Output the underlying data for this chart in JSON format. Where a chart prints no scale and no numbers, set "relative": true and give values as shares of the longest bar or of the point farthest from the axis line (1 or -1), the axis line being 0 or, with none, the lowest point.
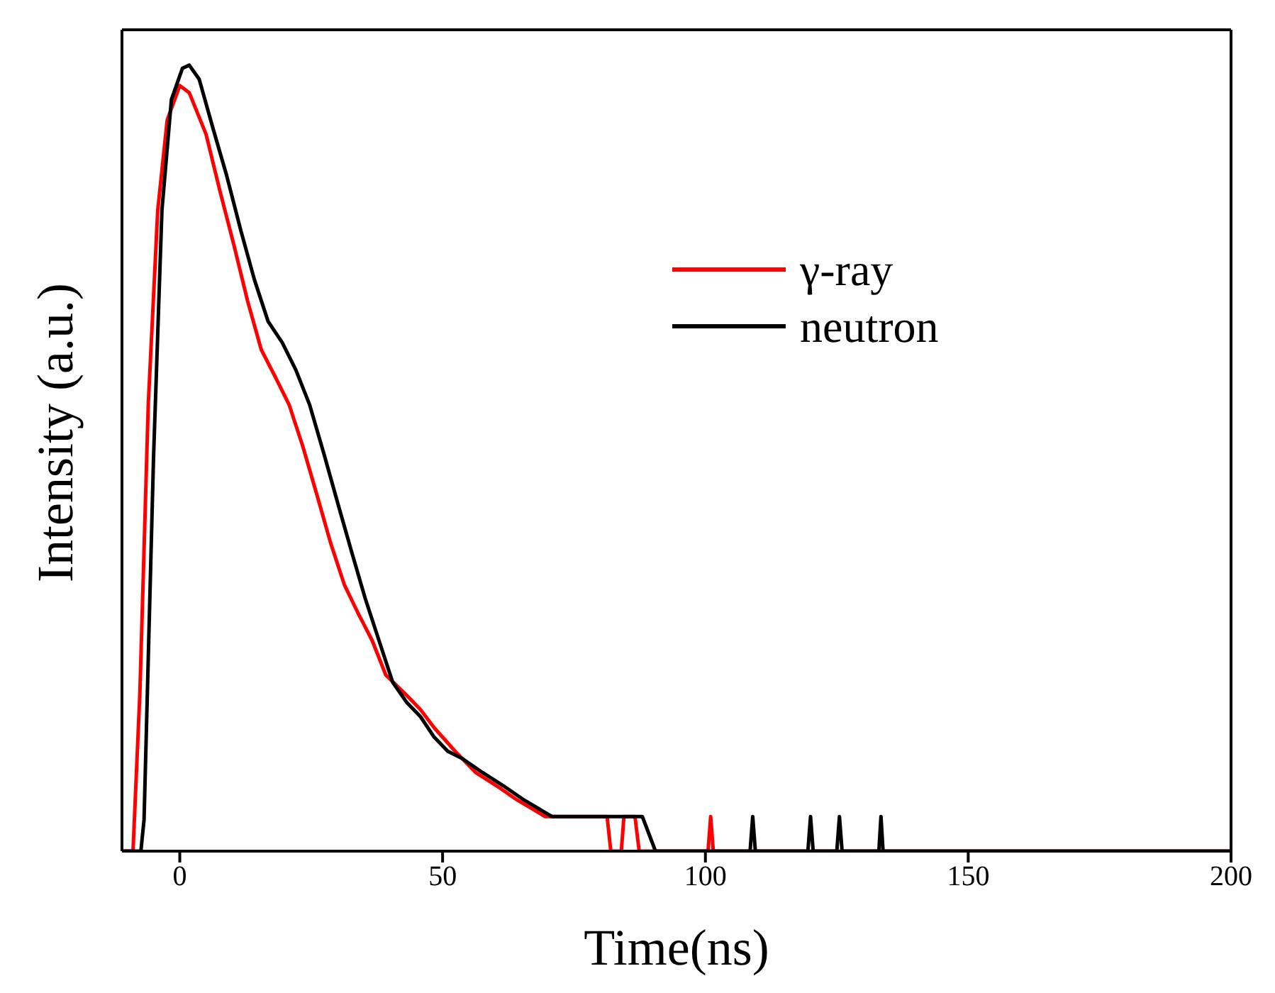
{
  "chart_data": {
    "type": "line",
    "xlabel": "Time(ns)",
    "ylabel": "Intensity (a.u.)",
    "relative": true,
    "xlim": [
      -11,
      200
    ],
    "xticks": [
      0,
      50,
      100,
      150,
      200
    ],
    "legend": "top right",
    "series": [
      {
        "name": "γ-ray",
        "color": "#ff0000",
        "x": [
          -11,
          -8.9,
          -7.6,
          -6,
          -4.2,
          -2.4,
          0,
          1.8,
          5,
          7.6,
          10.3,
          12.9,
          15.5,
          18.2,
          20.8,
          23.4,
          26.1,
          28.7,
          31.3,
          33.9,
          36.6,
          39.2,
          43.2,
          45.8,
          48.4,
          52.4,
          56.3,
          60.3,
          64.2,
          69.5,
          81.3,
          82,
          84,
          84.5,
          86.6,
          87.4,
          100.5,
          101,
          101.5,
          200
        ],
        "values": [
          0,
          0,
          0.2,
          0.568,
          0.815,
          0.93,
          0.974,
          0.965,
          0.912,
          0.841,
          0.771,
          0.7,
          0.638,
          0.603,
          0.568,
          0.515,
          0.453,
          0.392,
          0.339,
          0.303,
          0.268,
          0.224,
          0.198,
          0.18,
          0.157,
          0.127,
          0.1,
          0.083,
          0.065,
          0.044,
          0.044,
          0,
          0,
          0.044,
          0.044,
          0,
          0,
          0.044,
          0,
          0
        ]
      },
      {
        "name": "neutron",
        "color": "#000000",
        "x": [
          -11,
          -7.4,
          -6.8,
          -5,
          -3.4,
          -1.6,
          0.5,
          1.8,
          3.7,
          6.3,
          8.9,
          11.6,
          14.2,
          16.8,
          19.5,
          22.1,
          24.7,
          27.4,
          30,
          32.6,
          35.3,
          37.9,
          40.5,
          43.2,
          45.8,
          48.4,
          51,
          53.7,
          57.6,
          61.6,
          65.5,
          70.8,
          88,
          90.5,
          108.5,
          109,
          109.5,
          119.5,
          120,
          120.5,
          125,
          125.5,
          126,
          133,
          133.4,
          133.8,
          200
        ],
        "values": [
          0,
          0,
          0.04,
          0.5,
          0.815,
          0.956,
          0.996,
          1,
          0.982,
          0.92,
          0.86,
          0.79,
          0.727,
          0.674,
          0.647,
          0.612,
          0.568,
          0.506,
          0.444,
          0.383,
          0.321,
          0.268,
          0.215,
          0.189,
          0.171,
          0.145,
          0.127,
          0.118,
          0.1,
          0.083,
          0.065,
          0.044,
          0.044,
          0,
          0,
          0.044,
          0,
          0,
          0.044,
          0,
          0,
          0.044,
          0,
          0,
          0.044,
          0,
          0
        ]
      }
    ]
  }
}
